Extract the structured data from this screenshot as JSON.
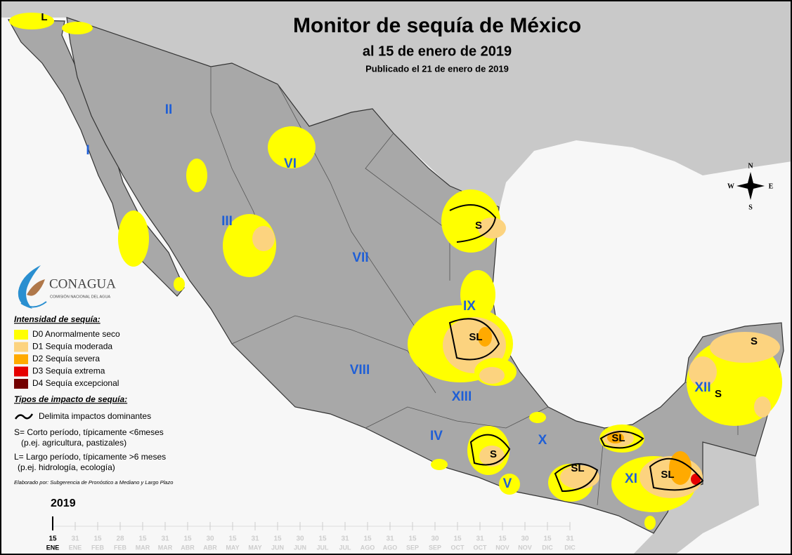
{
  "header": {
    "title": "Monitor de sequía de México",
    "subtitle": "al 15 de enero de 2019",
    "published": "Publicado el 21 de enero de 2019"
  },
  "map": {
    "regions": [
      "I",
      "II",
      "III",
      "IV",
      "V",
      "VI",
      "VII",
      "VIII",
      "IX",
      "X",
      "XI",
      "XII",
      "XIII"
    ],
    "impact_labels": [
      "L",
      "S",
      "SL",
      "S",
      "SL",
      "SL",
      "SL",
      "S",
      "S"
    ],
    "compass": {
      "n": "N",
      "s": "S",
      "e": "E",
      "w": "W"
    }
  },
  "logo": {
    "name": "CONAGUA",
    "tagline": "COMISIÓN NACIONAL DEL AGUA"
  },
  "legend": {
    "intensity_title": "Intensidad de sequía:",
    "levels": [
      {
        "label": "D0 Anormalmente seco",
        "color": "#ffff00"
      },
      {
        "label": "D1 Sequía moderada",
        "color": "#fcd37f"
      },
      {
        "label": "D2 Sequía severa",
        "color": "#ffaa00"
      },
      {
        "label": "D3 Sequía extrema",
        "color": "#e60000"
      },
      {
        "label": "D4 Sequía excepcional",
        "color": "#730000"
      }
    ],
    "impact_title": "Tipos de impacto de sequía:",
    "boundary_label": "Delimita impactos dominantes",
    "short_term": "S= Corto período, típicamente <6meses",
    "short_term_examples": "(p.ej. agricultura, pastizales)",
    "long_term": "L= Largo período, típicamente >6 meses",
    "long_term_examples": "(p.ej. hidrología, ecología)",
    "credit": "Elaborado por: Subgerencia de Pronóstico a Mediano y Largo Plazo"
  },
  "timeline": {
    "year": "2019",
    "ticks": [
      {
        "day": "15",
        "month": "ENE"
      },
      {
        "day": "31",
        "month": "ENE"
      },
      {
        "day": "15",
        "month": "FEB"
      },
      {
        "day": "28",
        "month": "FEB"
      },
      {
        "day": "15",
        "month": "MAR"
      },
      {
        "day": "31",
        "month": "MAR"
      },
      {
        "day": "15",
        "month": "ABR"
      },
      {
        "day": "30",
        "month": "ABR"
      },
      {
        "day": "15",
        "month": "MAY"
      },
      {
        "day": "31",
        "month": "MAY"
      },
      {
        "day": "15",
        "month": "JUN"
      },
      {
        "day": "30",
        "month": "JUN"
      },
      {
        "day": "15",
        "month": "JUL"
      },
      {
        "day": "31",
        "month": "JUL"
      },
      {
        "day": "15",
        "month": "AGO"
      },
      {
        "day": "31",
        "month": "AGO"
      },
      {
        "day": "15",
        "month": "SEP"
      },
      {
        "day": "30",
        "month": "SEP"
      },
      {
        "day": "15",
        "month": "OCT"
      },
      {
        "day": "31",
        "month": "OCT"
      },
      {
        "day": "15",
        "month": "NOV"
      },
      {
        "day": "30",
        "month": "NOV"
      },
      {
        "day": "15",
        "month": "DIC"
      },
      {
        "day": "31",
        "month": "DIC"
      }
    ],
    "current": 0
  }
}
